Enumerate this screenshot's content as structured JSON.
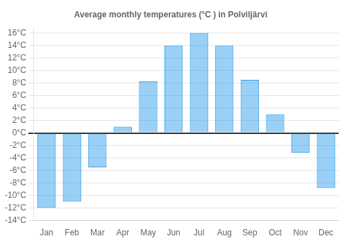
{
  "chart_data": {
    "type": "bar",
    "title": "Average monthly temperatures (°C ) in Polviljärvi",
    "categories": [
      "Jan",
      "Feb",
      "Mar",
      "Apr",
      "May",
      "Jun",
      "Jul",
      "Aug",
      "Sep",
      "Oct",
      "Nov",
      "Dec"
    ],
    "values": [
      -12,
      -11,
      -5.5,
      1,
      8.3,
      14,
      16,
      14,
      8.5,
      3,
      -3.2,
      -8.8
    ],
    "ylim": [
      -14,
      17
    ],
    "yticks": [
      {
        "value": -14,
        "label": "-14°C"
      },
      {
        "value": -12,
        "label": "-12°C"
      },
      {
        "value": -10,
        "label": "-10°C"
      },
      {
        "value": -8,
        "label": "-8°C"
      },
      {
        "value": -6,
        "label": "-6°C"
      },
      {
        "value": -4,
        "label": "-4°C"
      },
      {
        "value": -2,
        "label": "-2°C"
      },
      {
        "value": 0,
        "label": "0°C"
      },
      {
        "value": 2,
        "label": "2°C"
      },
      {
        "value": 4,
        "label": "4°C"
      },
      {
        "value": 6,
        "label": "6°C"
      },
      {
        "value": 8,
        "label": "8°C"
      },
      {
        "value": 10,
        "label": "10°C"
      },
      {
        "value": 12,
        "label": "12°C"
      },
      {
        "value": 14,
        "label": "14°C"
      },
      {
        "value": 16,
        "label": "16°C"
      }
    ],
    "grid": true
  }
}
